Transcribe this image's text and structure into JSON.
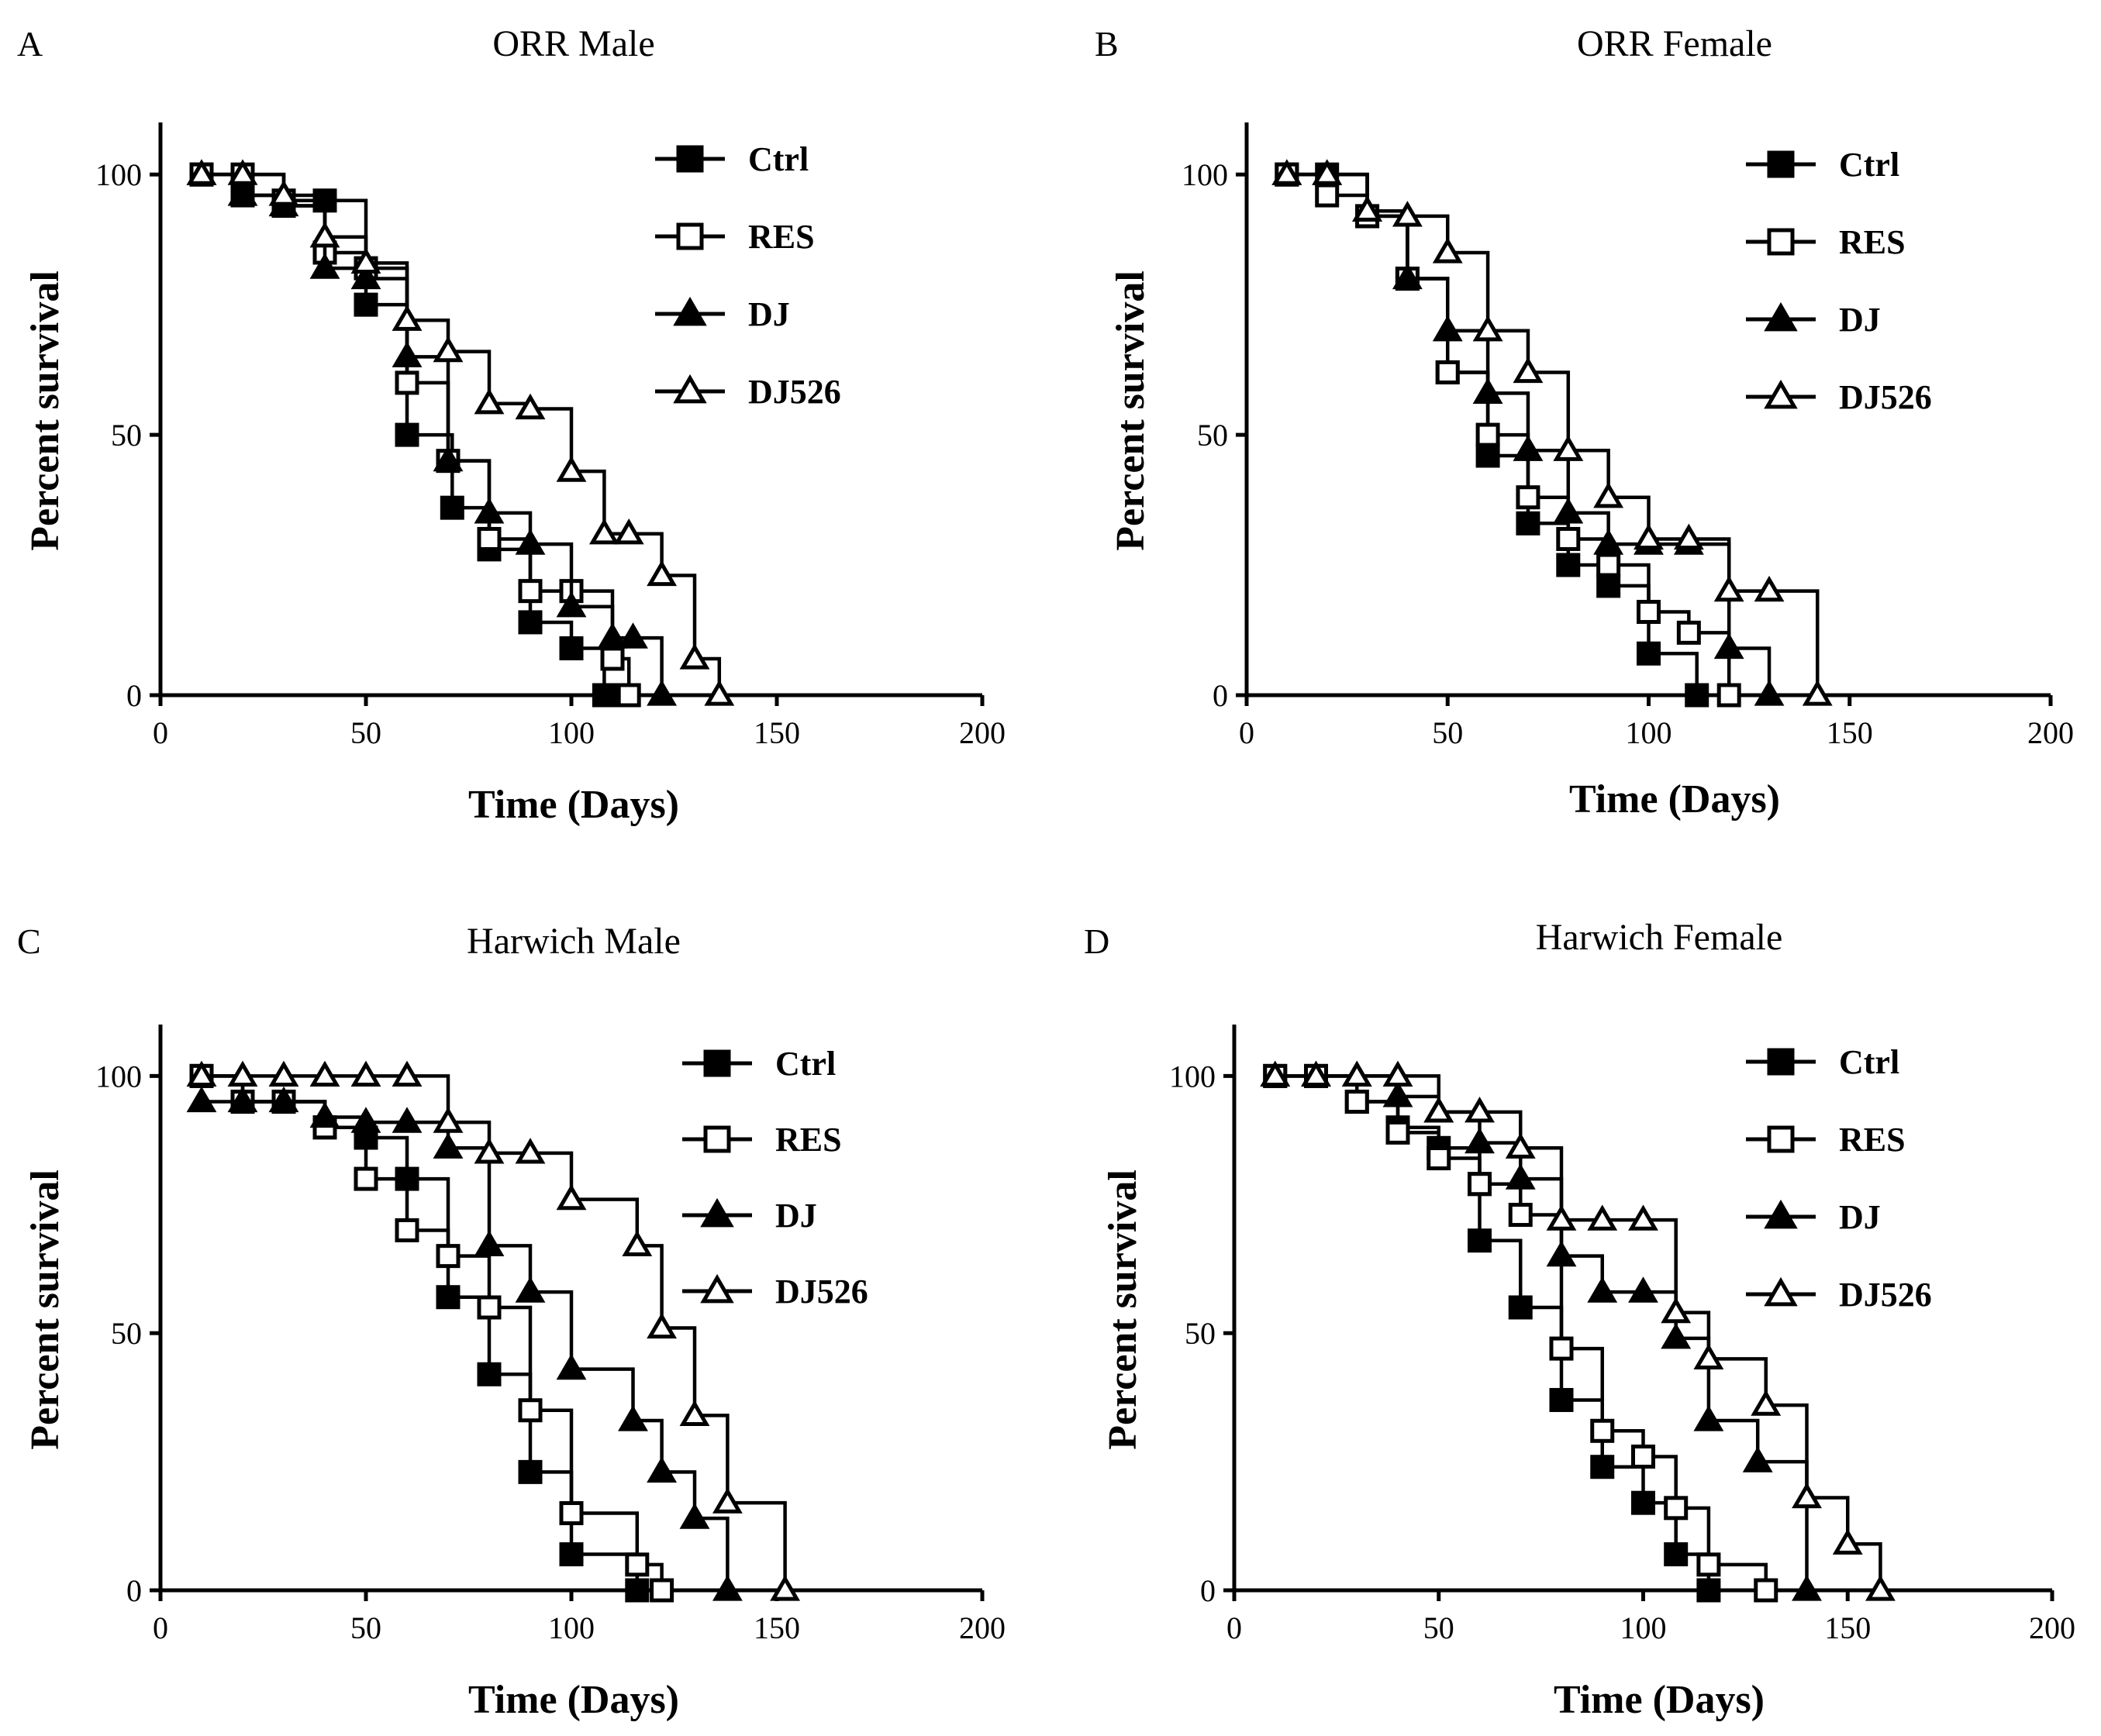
{
  "chart_data": [
    {
      "type": "line",
      "subtype": "kaplan-meier survival",
      "letter": "A",
      "title": "ORR Male",
      "xlabel": "Time (Days)",
      "ylabel": "Percent survival",
      "xlim": [
        0,
        200
      ],
      "ylim": [
        0,
        110
      ],
      "xticks": [
        0,
        50,
        100,
        150,
        200
      ],
      "yticks": [
        0,
        50,
        100
      ],
      "legend_position": "top-right",
      "series": [
        {
          "name": "Ctrl",
          "marker": "square-filled",
          "points": [
            [
              10,
              100
            ],
            [
              20,
              96
            ],
            [
              30,
              94
            ],
            [
              40,
              95
            ],
            [
              50,
              75
            ],
            [
              60,
              50
            ],
            [
              71,
              36
            ],
            [
              80,
              28
            ],
            [
              90,
              14
            ],
            [
              100,
              9
            ],
            [
              108,
              0
            ],
            [
              111,
              0
            ]
          ]
        },
        {
          "name": "RES",
          "marker": "square-open",
          "points": [
            [
              10,
              100
            ],
            [
              20,
              100
            ],
            [
              30,
              95
            ],
            [
              40,
              85
            ],
            [
              50,
              82
            ],
            [
              60,
              60
            ],
            [
              70,
              45
            ],
            [
              80,
              30
            ],
            [
              90,
              20
            ],
            [
              100,
              20
            ],
            [
              110,
              7
            ],
            [
              114,
              0
            ]
          ]
        },
        {
          "name": "DJ",
          "marker": "triangle-filled",
          "points": [
            [
              10,
              100
            ],
            [
              20,
              96
            ],
            [
              30,
              94
            ],
            [
              40,
              82
            ],
            [
              50,
              80
            ],
            [
              60,
              65
            ],
            [
              70,
              45
            ],
            [
              80,
              35
            ],
            [
              90,
              29
            ],
            [
              100,
              17
            ],
            [
              110,
              11
            ],
            [
              115,
              11
            ],
            [
              122,
              0
            ]
          ]
        },
        {
          "name": "DJ526",
          "marker": "triangle-open",
          "points": [
            [
              10,
              100
            ],
            [
              20,
              100
            ],
            [
              30,
              96
            ],
            [
              40,
              88
            ],
            [
              50,
              83
            ],
            [
              60,
              72
            ],
            [
              70,
              66
            ],
            [
              80,
              56
            ],
            [
              90,
              55
            ],
            [
              100,
              43
            ],
            [
              108,
              31
            ],
            [
              114,
              31
            ],
            [
              122,
              23
            ],
            [
              130,
              7
            ],
            [
              136,
              0
            ]
          ]
        }
      ]
    },
    {
      "type": "line",
      "subtype": "kaplan-meier survival",
      "letter": "B",
      "title": "ORR Female",
      "xlabel": "Time (Days)",
      "ylabel": "Percent survival",
      "xlim": [
        0,
        200
      ],
      "ylim": [
        0,
        110
      ],
      "xticks": [
        0,
        50,
        100,
        150,
        200
      ],
      "yticks": [
        0,
        50,
        100
      ],
      "legend_position": "top-right",
      "series": [
        {
          "name": "Ctrl",
          "marker": "square-filled",
          "points": [
            [
              10,
              100
            ],
            [
              20,
              100
            ],
            [
              30,
              92
            ],
            [
              40,
              80
            ],
            [
              50,
              62
            ],
            [
              60,
              46
            ],
            [
              70,
              33
            ],
            [
              80,
              25
            ],
            [
              90,
              21
            ],
            [
              100,
              8
            ],
            [
              112,
              0
            ]
          ]
        },
        {
          "name": "RES",
          "marker": "square-open",
          "points": [
            [
              10,
              100
            ],
            [
              20,
              96
            ],
            [
              30,
              92
            ],
            [
              40,
              80
            ],
            [
              50,
              62
            ],
            [
              60,
              50
            ],
            [
              70,
              38
            ],
            [
              80,
              30
            ],
            [
              90,
              25
            ],
            [
              100,
              16
            ],
            [
              110,
              12
            ],
            [
              120,
              0
            ]
          ]
        },
        {
          "name": "DJ",
          "marker": "triangle-filled",
          "points": [
            [
              10,
              100
            ],
            [
              20,
              100
            ],
            [
              30,
              93
            ],
            [
              40,
              80
            ],
            [
              50,
              70
            ],
            [
              60,
              58
            ],
            [
              70,
              47
            ],
            [
              80,
              35
            ],
            [
              90,
              29
            ],
            [
              100,
              29
            ],
            [
              110,
              29
            ],
            [
              120,
              9
            ],
            [
              130,
              0
            ]
          ]
        },
        {
          "name": "DJ526",
          "marker": "triangle-open",
          "points": [
            [
              10,
              100
            ],
            [
              20,
              100
            ],
            [
              30,
              93
            ],
            [
              40,
              92
            ],
            [
              50,
              85
            ],
            [
              60,
              70
            ],
            [
              70,
              62
            ],
            [
              80,
              47
            ],
            [
              90,
              38
            ],
            [
              100,
              30
            ],
            [
              110,
              30
            ],
            [
              120,
              20
            ],
            [
              130,
              20
            ],
            [
              142,
              0
            ]
          ]
        }
      ]
    },
    {
      "type": "line",
      "subtype": "kaplan-meier survival",
      "letter": "C",
      "title": "Harwich Male",
      "xlabel": "Time (Days)",
      "ylabel": "Percent survival",
      "xlim": [
        0,
        200
      ],
      "ylim": [
        0,
        110
      ],
      "xticks": [
        0,
        50,
        100,
        150,
        200
      ],
      "yticks": [
        0,
        50,
        100
      ],
      "legend_position": "top-right",
      "series": [
        {
          "name": "Ctrl",
          "marker": "square-filled",
          "points": [
            [
              10,
              100
            ],
            [
              20,
              95
            ],
            [
              30,
              95
            ],
            [
              40,
              90
            ],
            [
              50,
              88
            ],
            [
              60,
              80
            ],
            [
              70,
              57
            ],
            [
              80,
              42
            ],
            [
              90,
              23
            ],
            [
              100,
              7
            ],
            [
              116,
              0
            ]
          ]
        },
        {
          "name": "RES",
          "marker": "square-open",
          "points": [
            [
              10,
              100
            ],
            [
              20,
              95
            ],
            [
              30,
              95
            ],
            [
              40,
              90
            ],
            [
              50,
              80
            ],
            [
              60,
              70
            ],
            [
              70,
              65
            ],
            [
              80,
              55
            ],
            [
              90,
              35
            ],
            [
              100,
              15
            ],
            [
              116,
              5
            ],
            [
              122,
              0
            ]
          ]
        },
        {
          "name": "DJ",
          "marker": "triangle-filled",
          "points": [
            [
              10,
              95
            ],
            [
              20,
              95
            ],
            [
              30,
              95
            ],
            [
              40,
              92
            ],
            [
              50,
              91
            ],
            [
              60,
              91
            ],
            [
              70,
              86
            ],
            [
              80,
              67
            ],
            [
              90,
              58
            ],
            [
              100,
              43
            ],
            [
              115,
              33
            ],
            [
              122,
              23
            ],
            [
              130,
              14
            ],
            [
              138,
              0
            ]
          ]
        },
        {
          "name": "DJ526",
          "marker": "triangle-open",
          "points": [
            [
              10,
              100
            ],
            [
              20,
              100
            ],
            [
              30,
              100
            ],
            [
              40,
              100
            ],
            [
              50,
              100
            ],
            [
              60,
              100
            ],
            [
              70,
              91
            ],
            [
              80,
              85
            ],
            [
              90,
              85
            ],
            [
              100,
              76
            ],
            [
              116,
              67
            ],
            [
              122,
              51
            ],
            [
              130,
              34
            ],
            [
              138,
              17
            ],
            [
              152,
              0
            ]
          ]
        }
      ]
    },
    {
      "type": "line",
      "subtype": "kaplan-meier survival",
      "letter": "D",
      "title": "Harwich Female",
      "xlabel": "Time (Days)",
      "ylabel": "Percent survival",
      "xlim": [
        0,
        200
      ],
      "ylim": [
        0,
        110
      ],
      "xticks": [
        0,
        50,
        100,
        150,
        200
      ],
      "yticks": [
        0,
        50,
        100
      ],
      "legend_position": "top-right",
      "series": [
        {
          "name": "Ctrl",
          "marker": "square-filled",
          "points": [
            [
              10,
              100
            ],
            [
              20,
              100
            ],
            [
              30,
              95
            ],
            [
              40,
              90
            ],
            [
              50,
              86
            ],
            [
              60,
              79
            ],
            [
              60,
              68
            ],
            [
              70,
              55
            ],
            [
              80,
              37
            ],
            [
              90,
              24
            ],
            [
              100,
              17
            ],
            [
              108,
              7
            ],
            [
              116,
              0
            ]
          ]
        },
        {
          "name": "RES",
          "marker": "square-open",
          "points": [
            [
              10,
              100
            ],
            [
              20,
              100
            ],
            [
              30,
              95
            ],
            [
              40,
              89
            ],
            [
              50,
              84
            ],
            [
              60,
              79
            ],
            [
              70,
              73
            ],
            [
              80,
              47
            ],
            [
              90,
              31
            ],
            [
              100,
              26
            ],
            [
              108,
              16
            ],
            [
              116,
              5
            ],
            [
              130,
              0
            ]
          ]
        },
        {
          "name": "DJ",
          "marker": "triangle-filled",
          "points": [
            [
              10,
              100
            ],
            [
              20,
              100
            ],
            [
              30,
              100
            ],
            [
              40,
              96
            ],
            [
              50,
              93
            ],
            [
              60,
              87
            ],
            [
              70,
              80
            ],
            [
              80,
              65
            ],
            [
              90,
              58
            ],
            [
              100,
              58
            ],
            [
              108,
              49
            ],
            [
              116,
              33
            ],
            [
              128,
              25
            ],
            [
              140,
              0
            ]
          ]
        },
        {
          "name": "DJ526",
          "marker": "triangle-open",
          "points": [
            [
              10,
              100
            ],
            [
              20,
              100
            ],
            [
              30,
              100
            ],
            [
              40,
              100
            ],
            [
              50,
              93
            ],
            [
              60,
              93
            ],
            [
              70,
              86
            ],
            [
              80,
              72
            ],
            [
              90,
              72
            ],
            [
              100,
              72
            ],
            [
              108,
              54
            ],
            [
              116,
              45
            ],
            [
              130,
              36
            ],
            [
              140,
              18
            ],
            [
              150,
              9
            ],
            [
              158,
              0
            ]
          ]
        }
      ]
    }
  ]
}
